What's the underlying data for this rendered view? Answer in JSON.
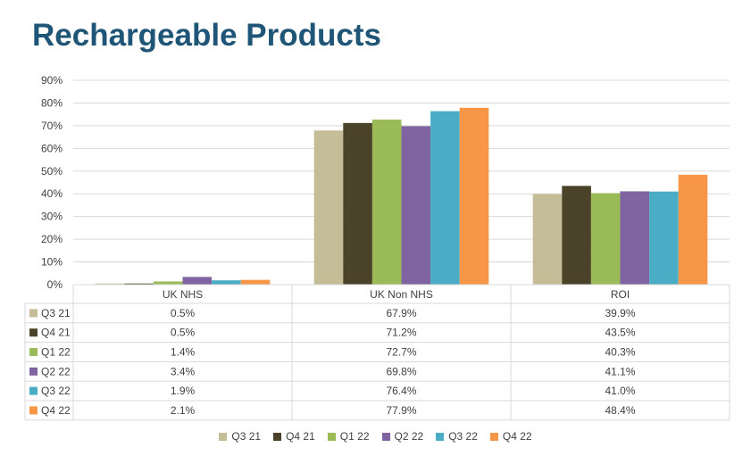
{
  "title": "Rechargeable Products",
  "chart_data": {
    "type": "bar",
    "categories": [
      "UK NHS",
      "UK Non NHS",
      "ROI"
    ],
    "series": [
      {
        "name": "Q3 21",
        "color": "#c4bd97",
        "values": [
          0.5,
          67.9,
          39.9
        ],
        "labels": [
          "0.5%",
          "67.9%",
          "39.9%"
        ]
      },
      {
        "name": "Q4 21",
        "color": "#4a4229",
        "values": [
          0.5,
          71.2,
          43.5
        ],
        "labels": [
          "0.5%",
          "71.2%",
          "43.5%"
        ]
      },
      {
        "name": "Q1 22",
        "color": "#9bbb59",
        "values": [
          1.4,
          72.7,
          40.3
        ],
        "labels": [
          "1.4%",
          "72.7%",
          "40.3%"
        ]
      },
      {
        "name": "Q2 22",
        "color": "#8064a2",
        "values": [
          3.4,
          69.8,
          41.1
        ],
        "labels": [
          "3.4%",
          "69.8%",
          "41.1%"
        ]
      },
      {
        "name": "Q3 22",
        "color": "#4bacc6",
        "values": [
          1.9,
          76.4,
          41.0
        ],
        "labels": [
          "1.9%",
          "76.4%",
          "41.0%"
        ]
      },
      {
        "name": "Q4 22",
        "color": "#f79646",
        "values": [
          2.1,
          77.9,
          48.4
        ],
        "labels": [
          "2.1%",
          "77.9%",
          "48.4%"
        ]
      }
    ],
    "ylim": [
      0,
      90
    ],
    "yticks": [
      "0%",
      "10%",
      "20%",
      "30%",
      "40%",
      "50%",
      "60%",
      "70%",
      "80%",
      "90%"
    ],
    "grid": true,
    "data_table": true,
    "legend_position": "bottom"
  }
}
